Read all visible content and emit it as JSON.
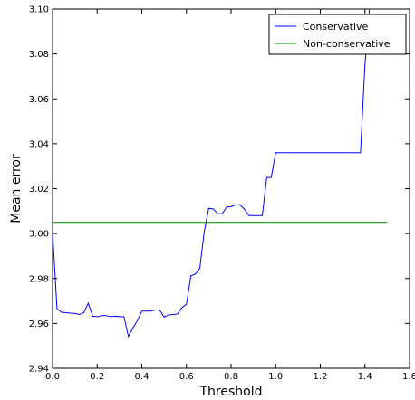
{
  "chart_data": {
    "type": "line",
    "title": "",
    "xlabel": "Threshold",
    "ylabel": "Mean error",
    "xlim": [
      0.0,
      1.6
    ],
    "ylim": [
      2.94,
      3.1
    ],
    "x_ticks": [
      "0.0",
      "0.2",
      "0.4",
      "0.6",
      "0.8",
      "1.0",
      "1.2",
      "1.4",
      "1.6"
    ],
    "y_ticks": [
      "2.94",
      "2.96",
      "2.98",
      "3.00",
      "3.02",
      "3.04",
      "3.06",
      "3.08",
      "3.10"
    ],
    "grid": false,
    "legend_position": "top-right",
    "series": [
      {
        "name": "Conservative",
        "color": "#0000ff",
        "x": [
          0.0,
          0.02,
          0.04,
          0.06,
          0.08,
          0.1,
          0.12,
          0.14,
          0.16,
          0.18,
          0.2,
          0.22,
          0.24,
          0.26,
          0.28,
          0.3,
          0.32,
          0.34,
          0.36,
          0.38,
          0.4,
          0.42,
          0.44,
          0.46,
          0.48,
          0.5,
          0.52,
          0.54,
          0.56,
          0.58,
          0.6,
          0.62,
          0.64,
          0.66,
          0.68,
          0.7,
          0.72,
          0.74,
          0.76,
          0.78,
          0.8,
          0.82,
          0.84,
          0.86,
          0.88,
          0.9,
          0.92,
          0.94,
          0.96,
          0.98,
          1.0,
          1.02,
          1.04,
          1.06,
          1.08,
          1.1,
          1.12,
          1.14,
          1.16,
          1.18,
          1.2,
          1.22,
          1.24,
          1.26,
          1.28,
          1.3,
          1.32,
          1.34,
          1.36,
          1.38,
          1.4,
          1.42
        ],
        "y": [
          3.001,
          2.9665,
          2.965,
          2.9648,
          2.9646,
          2.9645,
          2.964,
          2.9648,
          2.969,
          2.9632,
          2.963,
          2.9635,
          2.9635,
          2.963,
          2.9632,
          2.963,
          2.963,
          2.9542,
          2.958,
          2.9612,
          2.9655,
          2.9655,
          2.9655,
          2.966,
          2.966,
          2.9628,
          2.9638,
          2.964,
          2.9642,
          2.967,
          2.9685,
          2.9812,
          2.982,
          2.9845,
          3.001,
          3.0112,
          3.011,
          3.0088,
          3.0088,
          3.0118,
          3.012,
          3.0128,
          3.0128,
          3.0108,
          3.008,
          3.008,
          3.008,
          3.008,
          3.025,
          3.025,
          3.036,
          3.036,
          3.036,
          3.036,
          3.036,
          3.036,
          3.036,
          3.036,
          3.036,
          3.036,
          3.036,
          3.036,
          3.036,
          3.036,
          3.036,
          3.036,
          3.036,
          3.036,
          3.036,
          3.036,
          3.075,
          3.1
        ]
      },
      {
        "name": "Non-conservative",
        "color": "#008000",
        "x": [
          0.0,
          1.5
        ],
        "y": [
          3.005,
          3.005
        ]
      }
    ]
  }
}
